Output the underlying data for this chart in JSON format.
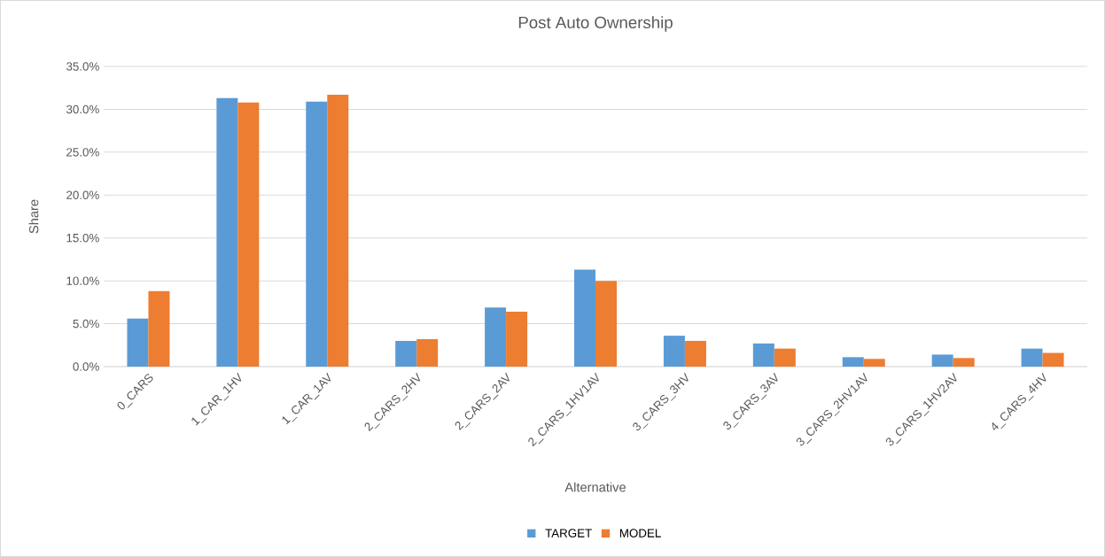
{
  "chart_data": {
    "type": "bar",
    "title": "Post Auto Ownership",
    "xlabel": "Alternative",
    "ylabel": "Share",
    "categories": [
      "0_CARS",
      "1_CAR_1HV",
      "1_CAR_1AV",
      "2_CARS_2HV",
      "2_CARS_2AV",
      "2_CARS_1HV1AV",
      "3_CARS_3HV",
      "3_CARS_3AV",
      "3_CARS_2HV1AV",
      "3_CARS_1HV2AV",
      "4_CARS_4HV"
    ],
    "series": [
      {
        "name": "TARGET",
        "color": "#5b9bd5",
        "values": [
          5.6,
          31.3,
          30.9,
          3.0,
          6.9,
          11.3,
          3.6,
          2.7,
          1.1,
          1.4,
          2.1
        ]
      },
      {
        "name": "MODEL",
        "color": "#ed7d31",
        "values": [
          8.8,
          30.8,
          31.7,
          3.2,
          6.4,
          10.0,
          3.0,
          2.1,
          0.9,
          1.0,
          1.6
        ]
      }
    ],
    "ylim": [
      0,
      35
    ],
    "yticks": [
      {
        "value": 0,
        "label": "0.0%"
      },
      {
        "value": 5,
        "label": "5.0%"
      },
      {
        "value": 10,
        "label": "10.0%"
      },
      {
        "value": 15,
        "label": "15.0%"
      },
      {
        "value": 20,
        "label": "20.0%"
      },
      {
        "value": 25,
        "label": "25.0%"
      },
      {
        "value": 30,
        "label": "30.0%"
      },
      {
        "value": 35,
        "label": "35.0%"
      }
    ],
    "grid": "y",
    "legend": "bottom"
  }
}
